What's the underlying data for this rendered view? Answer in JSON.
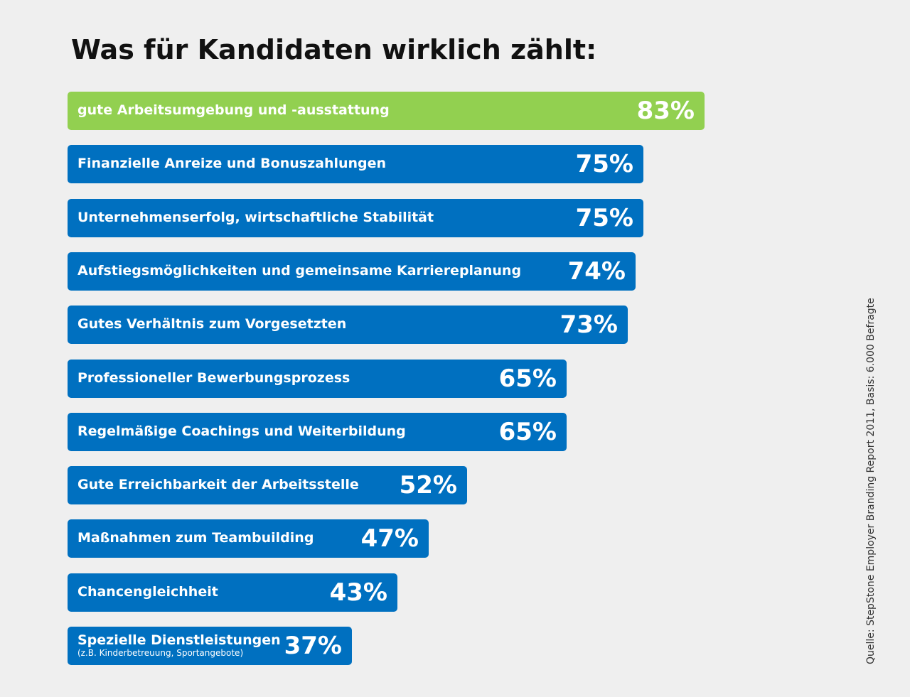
{
  "chart_data": {
    "type": "bar",
    "orientation": "horizontal",
    "title": "Was für Kandidaten wirklich zählt:",
    "xlabel": "",
    "ylabel": "",
    "xlim": [
      0,
      100
    ],
    "grid": false,
    "categories": [
      "gute Arbeitsumgebung und -ausstattung",
      "Finanzielle Anreize und Bonuszahlungen",
      "Unternehmenserfolg, wirtschaftliche Stabilität",
      "Aufstiegsmöglichkeiten und gemeinsame Karriereplanung",
      "Gutes Verhältnis zum Vorgesetzten",
      "Professioneller Bewerbungsprozess",
      "Regelmäßige Coachings und Weiterbildung",
      "Gute Erreichbarkeit der Arbeitsstelle",
      "Maßnahmen zum Teambuilding",
      "Chancengleichheit",
      "Spezielle Dienstleistungen"
    ],
    "subcategories": [
      "",
      "",
      "",
      "",
      "",
      "",
      "",
      "",
      "",
      "",
      "(z.B. Kinderbetreuung,  Sportangebote)"
    ],
    "values": [
      83,
      75,
      75,
      74,
      73,
      65,
      65,
      52,
      47,
      43,
      37
    ],
    "value_labels": [
      "83%",
      "75%",
      "75%",
      "74%",
      "73%",
      "65%",
      "65%",
      "52%",
      "47%",
      "43%",
      "37%"
    ],
    "colors": {
      "highlight": "#92d050",
      "default": "#0070c0",
      "background": "#efefef"
    },
    "highlight_index": 0
  },
  "source": "Quelle:  StepStone  Employer  Branding  Report 2011,  Basis:  6.000 Befragte"
}
